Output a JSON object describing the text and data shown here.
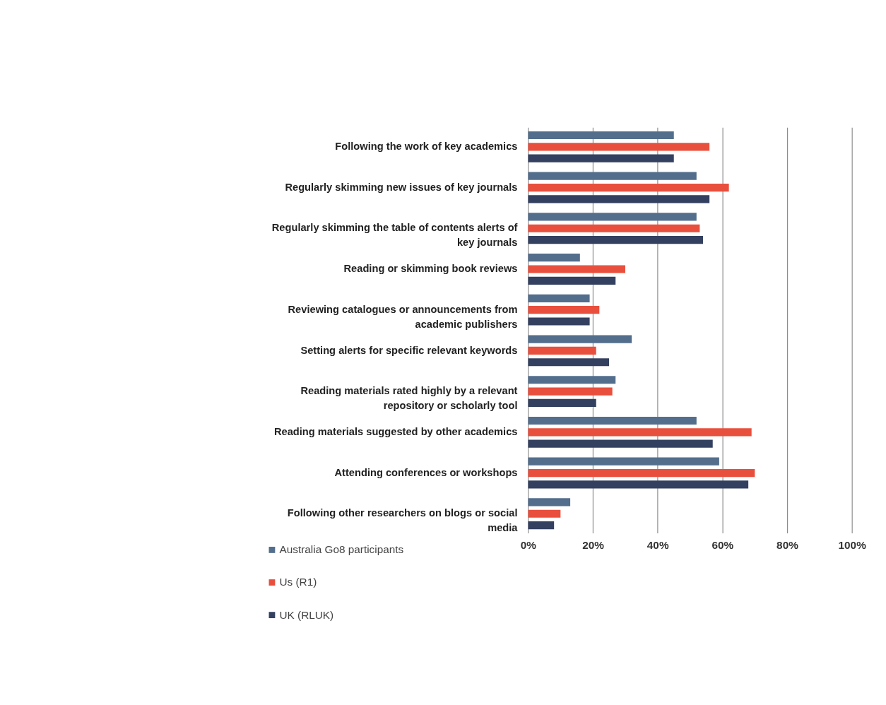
{
  "chart_data": {
    "type": "bar",
    "orientation": "horizontal",
    "categories": [
      "Following the work of key academics",
      "Regularly skimming new issues of key journals",
      "Regularly skimming the table of contents alerts of key journals",
      "Reading or skimming book reviews",
      "Reviewing catalogues or announcements from academic publishers",
      "Setting alerts for specific relevant keywords",
      "Reading materials rated highly by a relevant repository or scholarly tool",
      "Reading materials suggested by other academics",
      "Attending conferences or workshops",
      "Following other researchers on blogs or social media"
    ],
    "series": [
      {
        "name": "Australia Go8 participants",
        "color": "#536e8c",
        "values": [
          45,
          52,
          52,
          16,
          19,
          32,
          27,
          52,
          59,
          13
        ]
      },
      {
        "name": "Us (R1)",
        "color": "#e94f3d",
        "values": [
          56,
          62,
          53,
          30,
          22,
          21,
          26,
          69,
          70,
          10
        ]
      },
      {
        "name": "UK (RLUK)",
        "color": "#34405f",
        "values": [
          45,
          56,
          54,
          27,
          19,
          25,
          21,
          57,
          68,
          8
        ]
      }
    ],
    "xlim": [
      0,
      100
    ],
    "xticks": [
      {
        "value": 0,
        "label": "0%"
      },
      {
        "value": 20,
        "label": "20%"
      },
      {
        "value": 40,
        "label": "40%"
      },
      {
        "value": 60,
        "label": "60%"
      },
      {
        "value": 80,
        "label": "80%"
      },
      {
        "value": 100,
        "label": "100%"
      }
    ],
    "grid": "x",
    "legend": "bottom left"
  }
}
